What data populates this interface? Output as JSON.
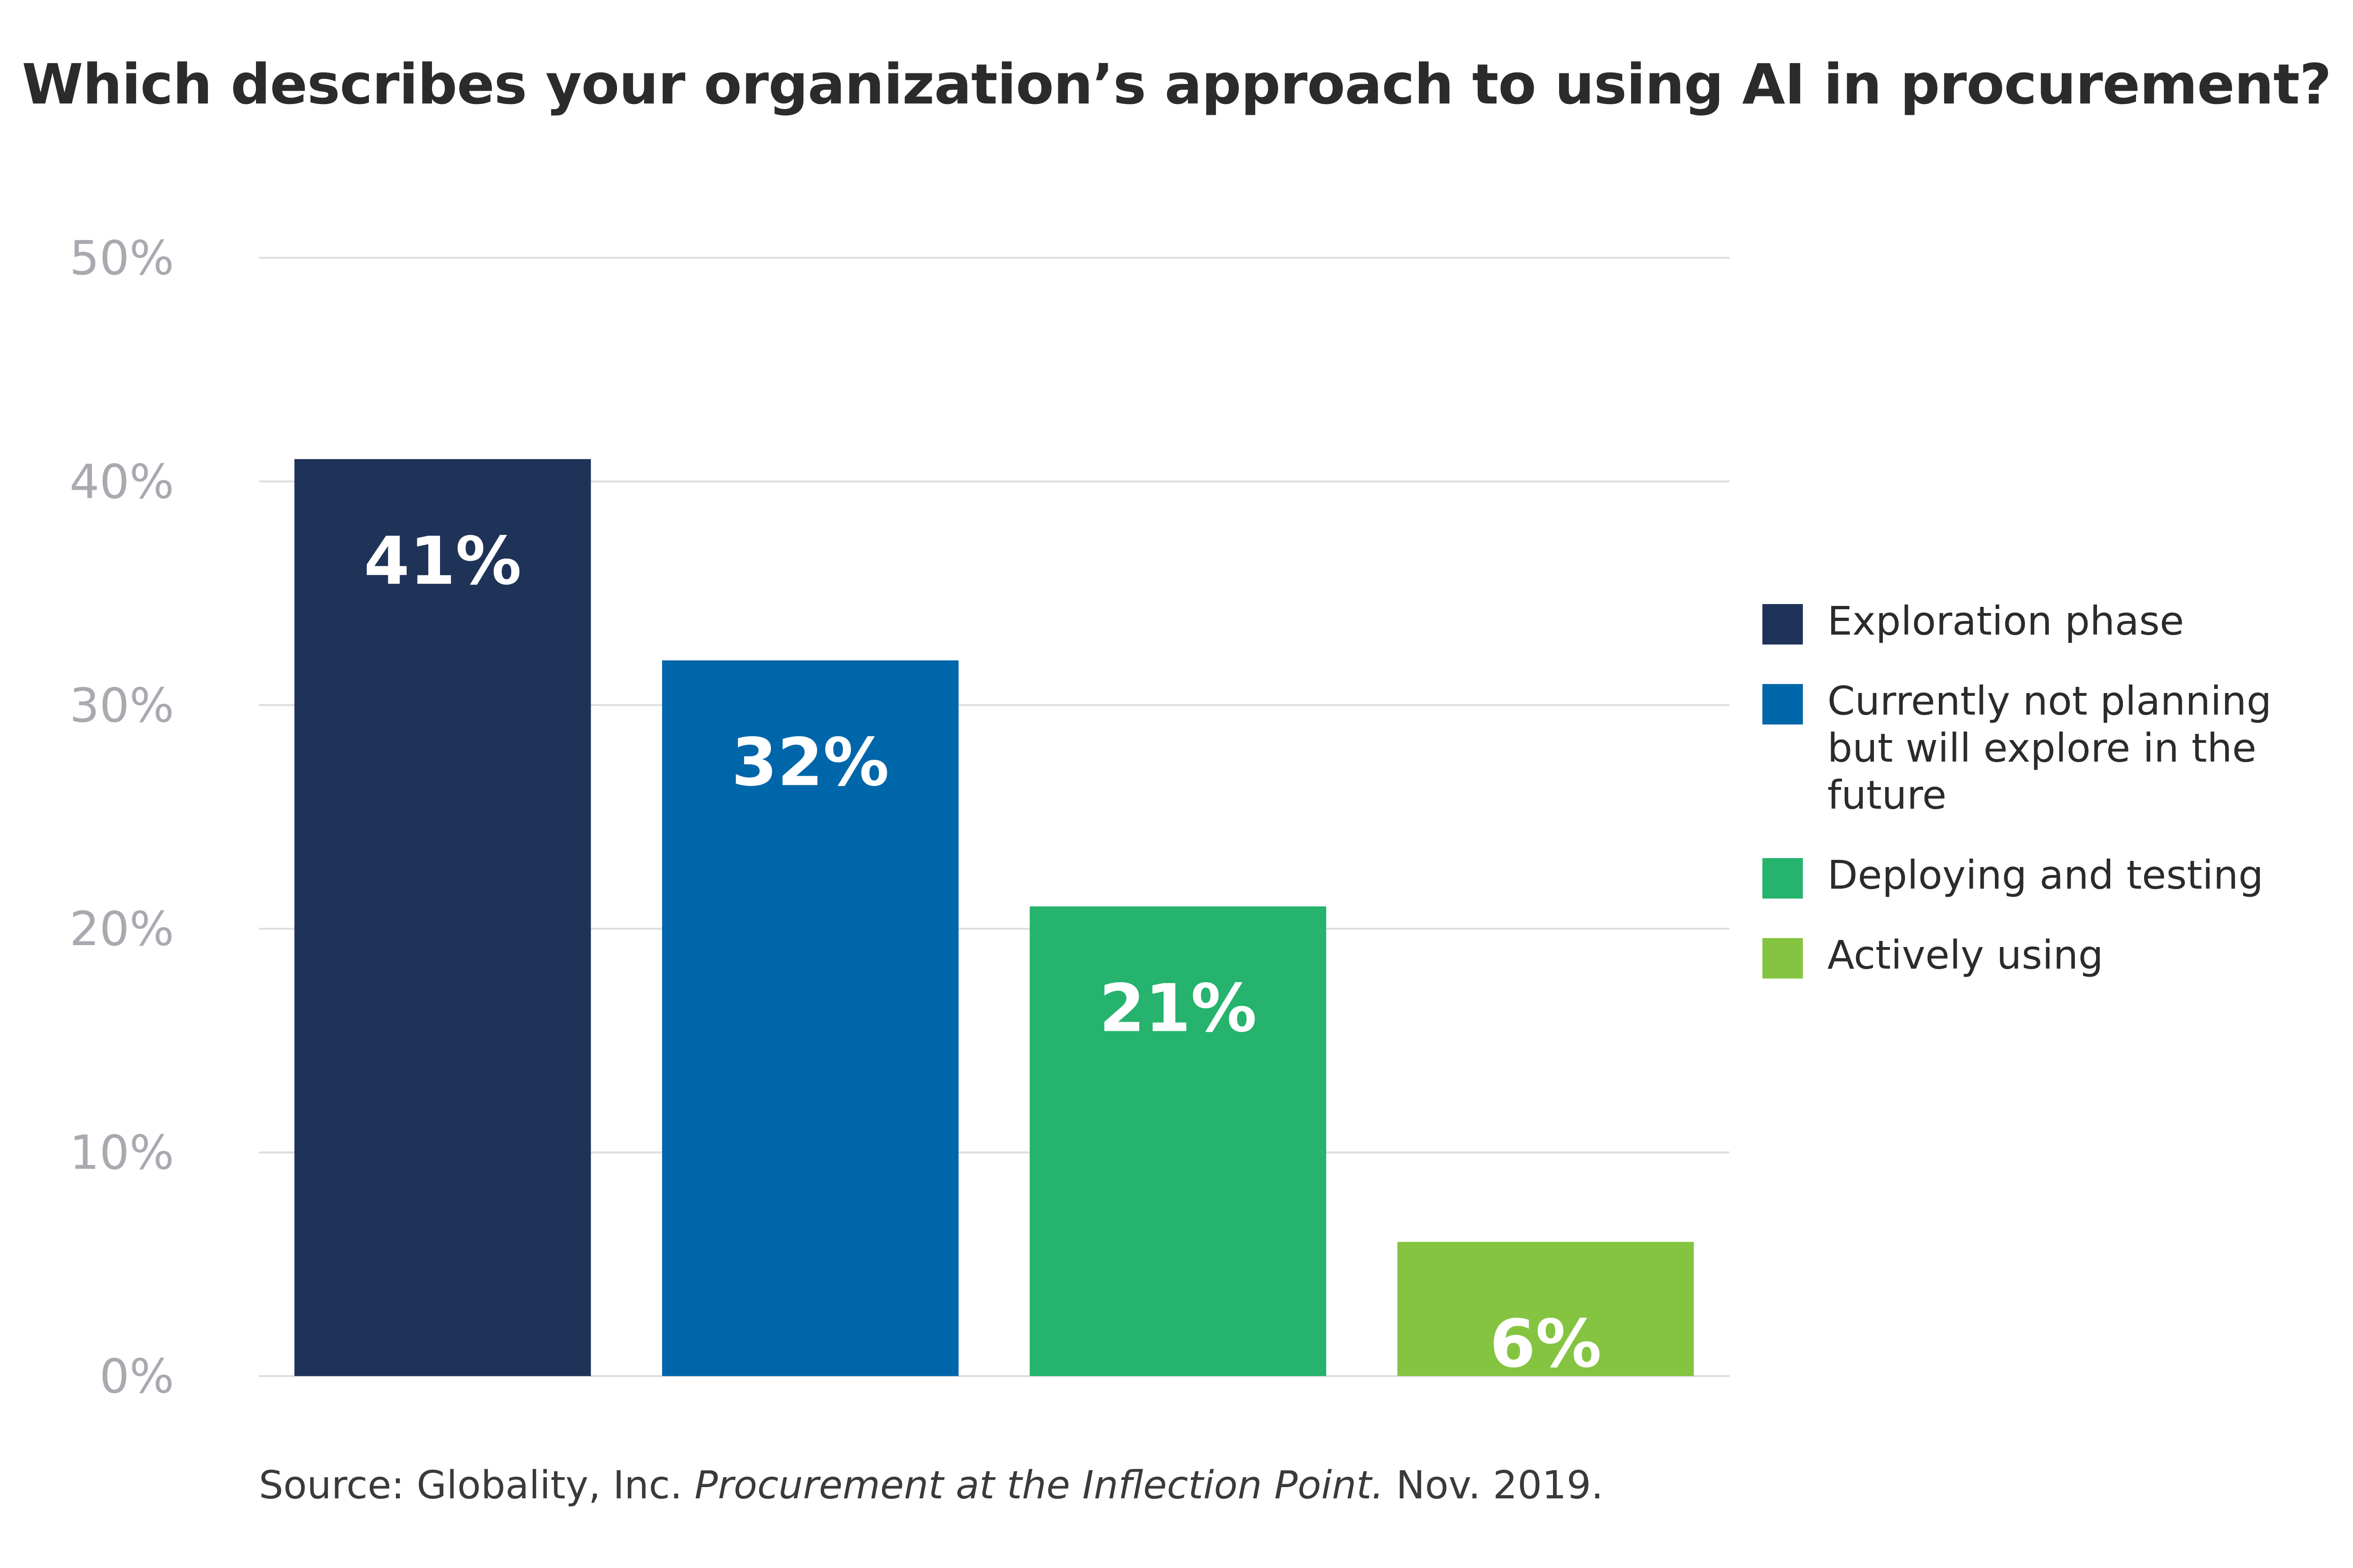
{
  "chart_data": {
    "type": "bar",
    "title": "Which describes your organization’s approach to using AI in procurement?",
    "categories": [
      "Exploration phase",
      "Currently not planning but will explore in the future",
      "Deploying and testing",
      "Actively using"
    ],
    "values": [
      41,
      32,
      21,
      6
    ],
    "value_labels": [
      "41%",
      "32%",
      "21%",
      "6%"
    ],
    "colors": [
      "#1f3358",
      "#0066aa",
      "#25b36e",
      "#84c441"
    ],
    "ylim": [
      0,
      50
    ],
    "yticks": [
      0,
      10,
      20,
      30,
      40,
      50
    ],
    "ytick_labels": [
      "0%",
      "10%",
      "20%",
      "30%",
      "40%",
      "50%"
    ],
    "xlabel": "",
    "ylabel": "",
    "grid": true,
    "legend_position": "right"
  },
  "legend": {
    "items": [
      {
        "label": "Exploration phase",
        "color": "#1f3358"
      },
      {
        "label": "Currently not planning but will explore in the future",
        "color": "#0066aa"
      },
      {
        "label": "Deploying and testing",
        "color": "#25b36e"
      },
      {
        "label": "Actively using",
        "color": "#84c441"
      }
    ]
  },
  "source": {
    "prefix": "Source: Globality, Inc. ",
    "publication": "Procurement at the Inflection Point.",
    "suffix": " Nov. 2019."
  }
}
